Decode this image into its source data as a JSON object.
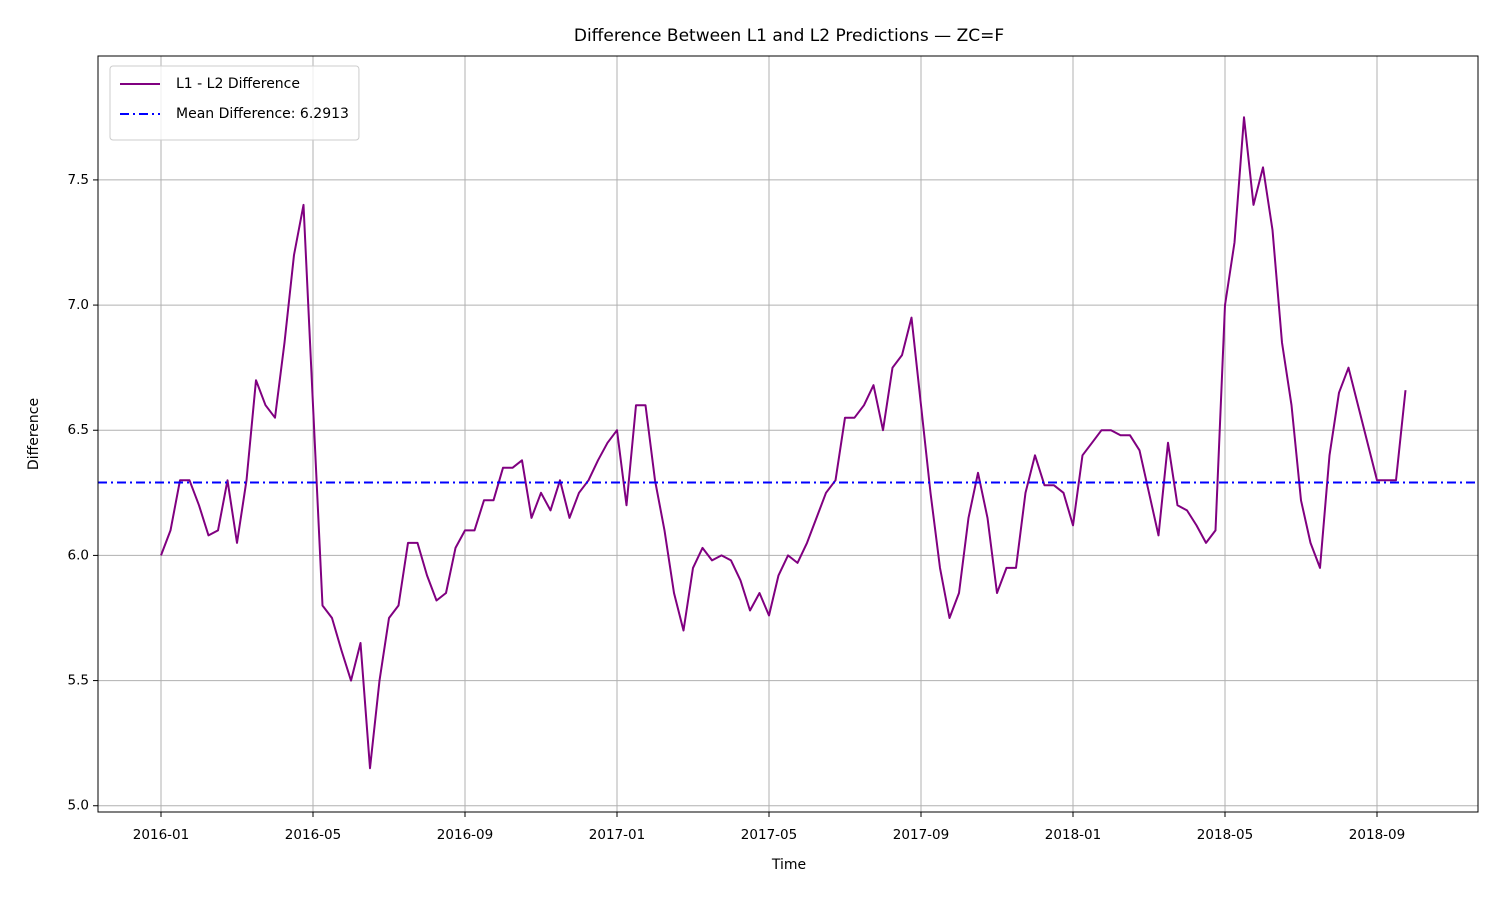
{
  "chart_data": {
    "type": "line",
    "title": "Difference Between L1 and L2 Predictions — ZC=F",
    "x_label": "Time",
    "y_label": "Difference",
    "categories": [
      "2016-01",
      null,
      null,
      null,
      null,
      null,
      null,
      null,
      null,
      null,
      null,
      null,
      null,
      null,
      null,
      null,
      "2016-05",
      null,
      null,
      null,
      null,
      null,
      null,
      null,
      null,
      null,
      null,
      null,
      null,
      null,
      null,
      null,
      "2016-09",
      null,
      null,
      null,
      null,
      null,
      null,
      null,
      null,
      null,
      null,
      null,
      null,
      null,
      null,
      null,
      "2017-01",
      null,
      null,
      null,
      null,
      null,
      null,
      null,
      null,
      null,
      null,
      null,
      null,
      null,
      null,
      null,
      "2017-05",
      null,
      null,
      null,
      null,
      null,
      null,
      null,
      null,
      null,
      null,
      null,
      null,
      null,
      null,
      null,
      "2017-09",
      null,
      null,
      null,
      null,
      null,
      null,
      null,
      null,
      null,
      null,
      null,
      null,
      null,
      null,
      null,
      "2018-01",
      null,
      null,
      null,
      null,
      null,
      null,
      null,
      null,
      null,
      null,
      null,
      null,
      null,
      null,
      null,
      "2018-05",
      null,
      null,
      null,
      null,
      null,
      null,
      null,
      null,
      null,
      null,
      null,
      null,
      null,
      null,
      null,
      "2018-09",
      null,
      null,
      null
    ],
    "series": [
      {
        "name": "L1 - L2 Difference",
        "color": "#800080",
        "values": [
          6.0,
          6.1,
          6.3,
          6.3,
          6.2,
          6.08,
          6.1,
          6.3,
          6.05,
          6.3,
          6.7,
          6.6,
          6.55,
          6.85,
          7.2,
          7.4,
          6.6,
          5.8,
          5.75,
          5.62,
          5.5,
          5.65,
          5.15,
          5.5,
          5.75,
          5.8,
          6.05,
          6.05,
          5.92,
          5.82,
          5.85,
          6.03,
          6.1,
          6.1,
          6.22,
          6.22,
          6.35,
          6.35,
          6.38,
          6.15,
          6.25,
          6.18,
          6.3,
          6.15,
          6.25,
          6.3,
          6.38,
          6.45,
          6.5,
          6.2,
          6.6,
          6.6,
          6.3,
          6.1,
          5.85,
          5.7,
          5.95,
          6.03,
          5.98,
          6.0,
          5.98,
          5.9,
          5.78,
          5.85,
          5.76,
          5.92,
          6.0,
          5.97,
          6.05,
          6.15,
          6.25,
          6.3,
          6.55,
          6.55,
          6.6,
          6.68,
          6.5,
          6.75,
          6.8,
          6.95,
          6.6,
          6.25,
          5.95,
          5.75,
          5.85,
          6.15,
          6.33,
          6.15,
          5.85,
          5.95,
          5.95,
          6.25,
          6.4,
          6.28,
          6.28,
          6.25,
          6.12,
          6.4,
          6.45,
          6.5,
          6.5,
          6.48,
          6.48,
          6.42,
          6.25,
          6.08,
          6.45,
          6.2,
          6.18,
          6.12,
          6.05,
          6.1,
          7.0,
          7.25,
          7.75,
          7.4,
          7.55,
          7.3,
          6.85,
          6.6,
          6.22,
          6.05,
          5.95,
          6.4,
          6.65,
          6.75,
          6.6,
          6.45,
          6.3,
          6.3,
          6.3,
          6.66
        ]
      }
    ],
    "mean_line": {
      "name": "Mean Difference: 6.2913",
      "value": 6.2913,
      "color": "#0000ff",
      "linestyle": "dashdot"
    },
    "ylim": [
      4.975,
      7.995
    ],
    "yticks": [
      {
        "value": 5,
        "label": "5.0"
      },
      5.5,
      {
        "value": 6,
        "label": "6.0"
      },
      6.5,
      {
        "value": 7,
        "label": "7.0"
      },
      7.5
    ],
    "grid": true,
    "legend": "upper left"
  }
}
